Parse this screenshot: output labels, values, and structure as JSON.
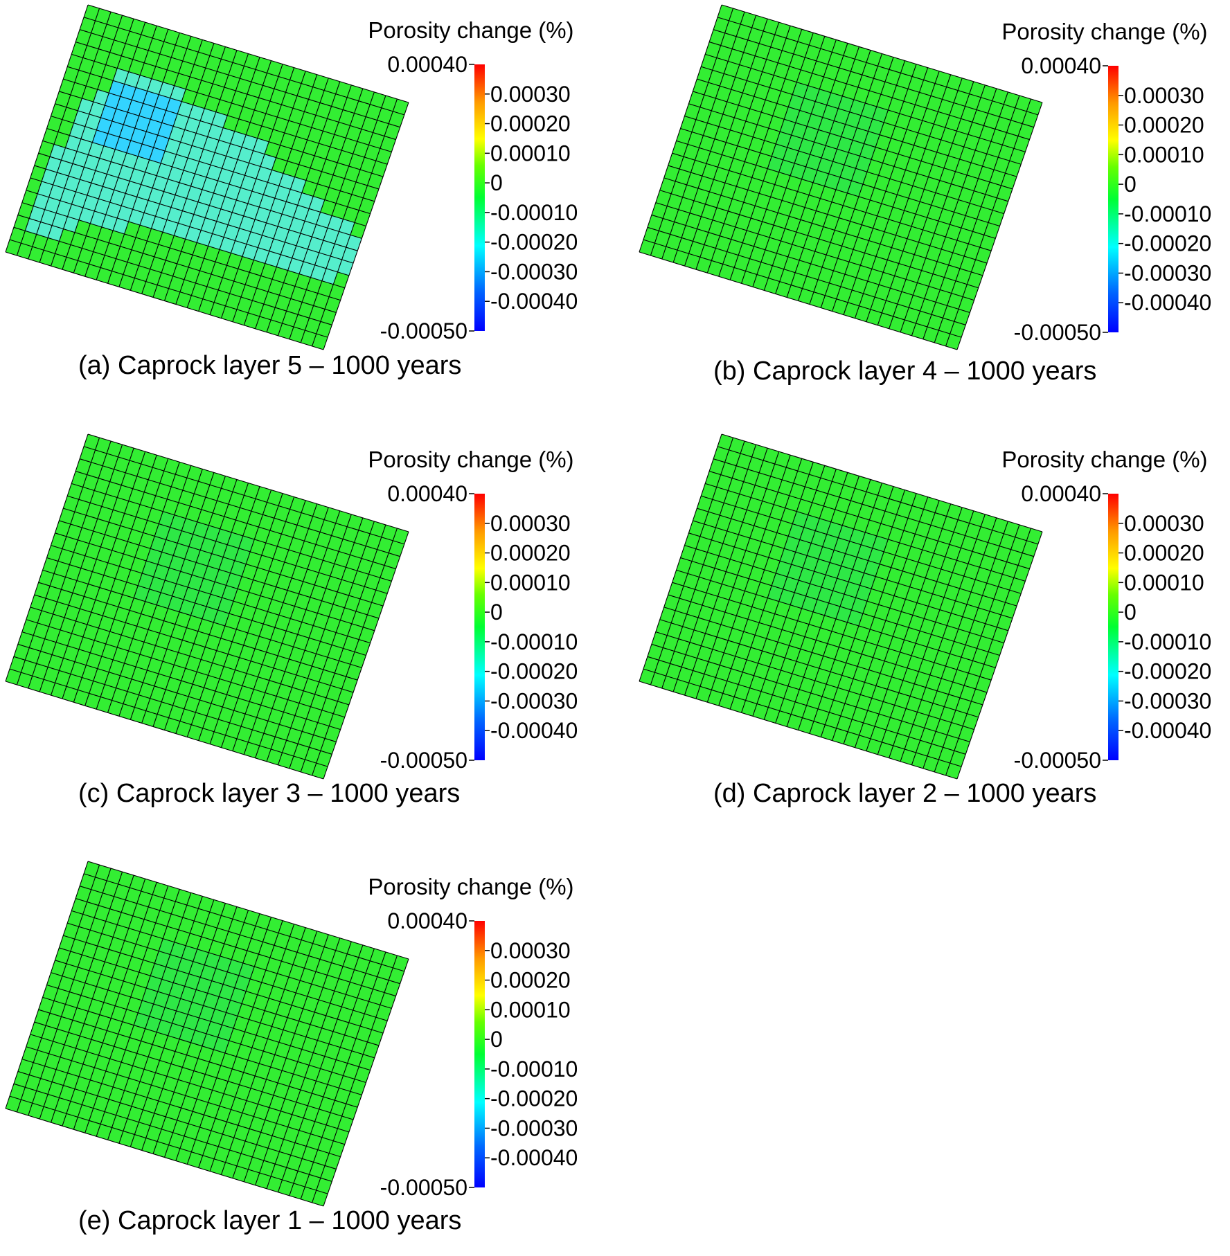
{
  "figure": {
    "colorbar_title": "Porosity change (%)",
    "colorbar_ticks": [
      "0.00040",
      "0.00030",
      "0.00020",
      "0.00010",
      "0",
      "-0.00010",
      "-0.00020",
      "-0.00030",
      "-0.00040",
      "-0.00050"
    ],
    "colors": {
      "grid_line": "#000000",
      "base_cell": "#33ee33",
      "plume_cell": "#55eecc",
      "plume_core": "#33d4ff",
      "faint_cell": "#2ee846"
    }
  },
  "chart_data": [
    {
      "type": "heatmap",
      "caption": "(a) Caprock layer 5 – 1000 years",
      "clim": [
        -0.0005,
        0.0004
      ],
      "ncols": 28,
      "nrows": 20,
      "cell_value_background": 0,
      "region_value": -0.00022,
      "region_min": -0.00028,
      "colormap": "rainbow (blue = -0.00050, red = 0.00040)"
    },
    {
      "type": "heatmap",
      "caption": "(b) Caprock layer 4 – 1000 years",
      "clim": [
        -0.0005,
        0.0004
      ],
      "ncols": 28,
      "nrows": 20,
      "cell_value_background": 0,
      "region_value": -2e-05,
      "colormap": "rainbow (blue = -0.00050, red = 0.00040)"
    },
    {
      "type": "heatmap",
      "caption": "(c) Caprock layer 3 – 1000 years",
      "clim": [
        -0.0005,
        0.0004
      ],
      "ncols": 28,
      "nrows": 20,
      "cell_value_background": 0,
      "region_value": -2e-05,
      "colormap": "rainbow (blue = -0.00050, red = 0.00040)"
    },
    {
      "type": "heatmap",
      "caption": "(d) Caprock layer 2 – 1000 years",
      "clim": [
        -0.0005,
        0.0004
      ],
      "ncols": 28,
      "nrows": 20,
      "cell_value_background": 0,
      "region_value": -2e-05,
      "colormap": "rainbow (blue = -0.00050, red = 0.00040)"
    },
    {
      "type": "heatmap",
      "caption": "(e) Caprock layer 1 – 1000 years",
      "clim": [
        -0.0005,
        0.0004
      ],
      "ncols": 28,
      "nrows": 20,
      "cell_value_background": 0,
      "region_value": -2e-05,
      "colormap": "rainbow (blue = -0.00050, red = 0.00040)"
    }
  ]
}
